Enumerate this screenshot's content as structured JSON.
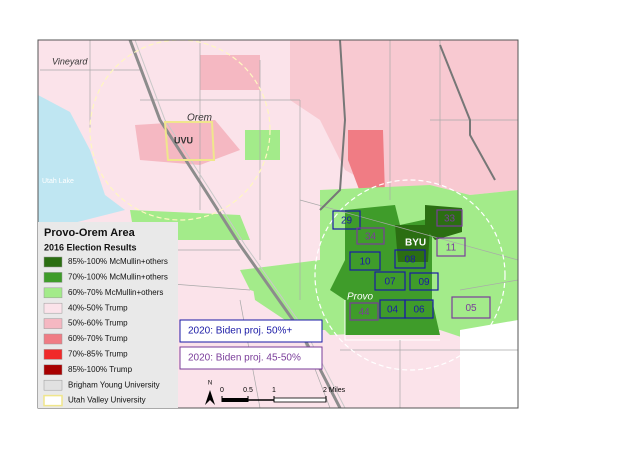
{
  "map": {
    "places": [
      {
        "label": "Vineyard"
      },
      {
        "label": "Orem"
      },
      {
        "label": "UVU"
      },
      {
        "label": "Utah Lake"
      },
      {
        "label": "BYU"
      },
      {
        "label": "Provo"
      }
    ],
    "precincts": [
      {
        "label": "29",
        "color": "#1a1aa6"
      },
      {
        "label": "34",
        "color": "#7a3d9a"
      },
      {
        "label": "33",
        "color": "#7a3d9a"
      },
      {
        "label": "11",
        "color": "#7a3d9a"
      },
      {
        "label": "10",
        "color": "#1a1aa6"
      },
      {
        "label": "08",
        "color": "#1a1aa6"
      },
      {
        "label": "07",
        "color": "#1a1aa6"
      },
      {
        "label": "09",
        "color": "#1a1aa6"
      },
      {
        "label": "44",
        "color": "#7a3d9a"
      },
      {
        "label": "04",
        "color": "#1a1aa6"
      },
      {
        "label": "06",
        "color": "#1a1aa6"
      },
      {
        "label": "05",
        "color": "#7a3d9a"
      }
    ],
    "legend": {
      "title": "Provo-Orem Area",
      "subtitle": "2016 Election Results",
      "items": [
        {
          "label": "85%-100% McMullin+others",
          "color": "#2b6e12"
        },
        {
          "label": "70%-100% McMullin+others",
          "color": "#3f9c2a"
        },
        {
          "label": "60%-70% McMullin+others",
          "color": "#a3eb8a"
        },
        {
          "label": "40%-50% Trump",
          "color": "#fbe3ea"
        },
        {
          "label": "50%-60% Trump",
          "color": "#f5b8c2"
        },
        {
          "label": "60%-70% Trump",
          "color": "#f07c84"
        },
        {
          "label": "70%-85% Trump",
          "color": "#f02a2a"
        },
        {
          "label": "85%-100% Trump",
          "color": "#a80000"
        },
        {
          "label": "Brigham Young University",
          "color": "#e1e1e1"
        },
        {
          "label": "Utah Valley University",
          "color": "#ffffff",
          "outline": "#f0e68c"
        }
      ]
    },
    "projection_boxes": [
      {
        "label": "2020: Biden proj. 50%+",
        "color": "#1a1aa6"
      },
      {
        "label": "2020: Biden proj. 45-50%",
        "color": "#7a3d9a"
      }
    ],
    "scale_bar": {
      "north": "N",
      "labels": [
        "0",
        "0.5",
        "1",
        "2 Miles"
      ]
    }
  }
}
